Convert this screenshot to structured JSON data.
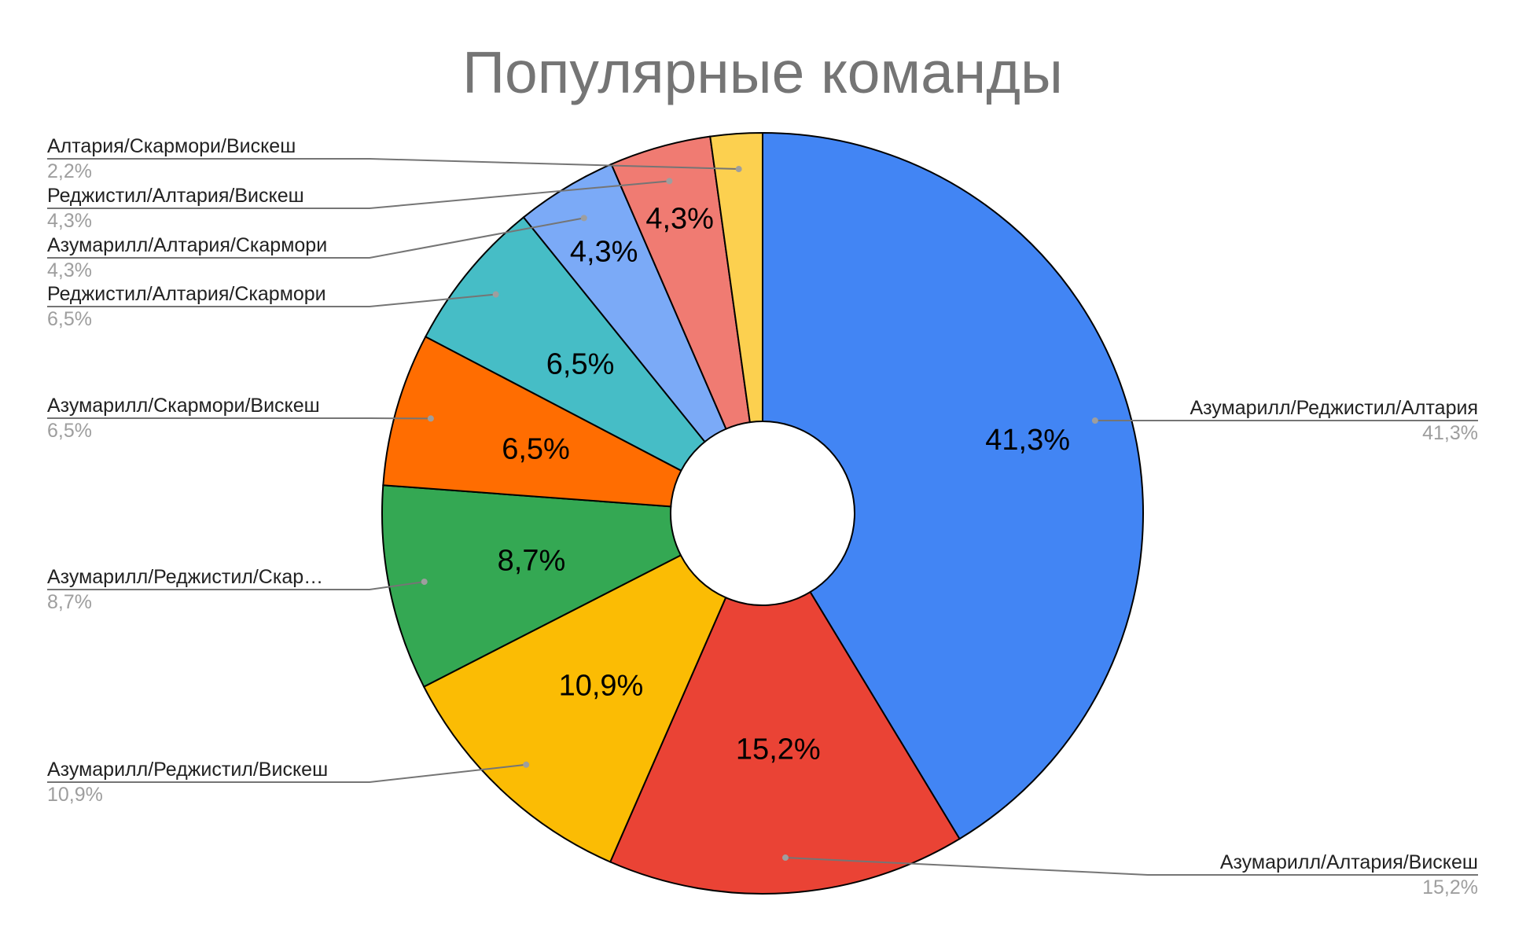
{
  "chart_data": {
    "type": "pie",
    "title": "Популярные команды",
    "donut": true,
    "legend": "labeled-callouts",
    "slices": [
      {
        "name": "Азумарилл/Реджистил/Алтария",
        "label": "Азумарилл/Реджистил/Алтария",
        "value": 41.3,
        "display": "41,3%",
        "color": "#4285F4"
      },
      {
        "name": "Азумарилл/Алтария/Вискеш",
        "label": "Азумарилл/Алтария/Вискеш",
        "value": 15.2,
        "display": "15,2%",
        "color": "#EA4335"
      },
      {
        "name": "Азумарилл/Реджистил/Вискеш",
        "label": "Азумарилл/Реджистил/Вискеш",
        "value": 10.9,
        "display": "10,9%",
        "color": "#FBBC04"
      },
      {
        "name": "Азумарилл/Реджистил/Скармори",
        "label": "Азумарилл/Реджистил/Скар…",
        "value": 8.7,
        "display": "8,7%",
        "color": "#34A853"
      },
      {
        "name": "Азумарилл/Скармори/Вискеш",
        "label": "Азумарилл/Скармори/Вискеш",
        "value": 6.5,
        "display": "6,5%",
        "color": "#FF6D01"
      },
      {
        "name": "Реджистил/Алтария/Скармори",
        "label": "Реджистил/Алтария/Скармори",
        "value": 6.5,
        "display": "6,5%",
        "color": "#46BDC6"
      },
      {
        "name": "Азумарилл/Алтария/Скармори",
        "label": "Азумарилл/Алтария/Скармори",
        "value": 4.3,
        "display": "4,3%",
        "color": "#7BAAF7"
      },
      {
        "name": "Реджистил/Алтария/Вискеш",
        "label": "Реджистил/Алтария/Вискеш",
        "value": 4.3,
        "display": "4,3%",
        "color": "#F07B72"
      },
      {
        "name": "Алтария/Скармори/Вискеш",
        "label": "Алтария/Скармори/Вискеш",
        "value": 2.2,
        "display": "2,2%",
        "color": "#FCD04F"
      }
    ]
  }
}
